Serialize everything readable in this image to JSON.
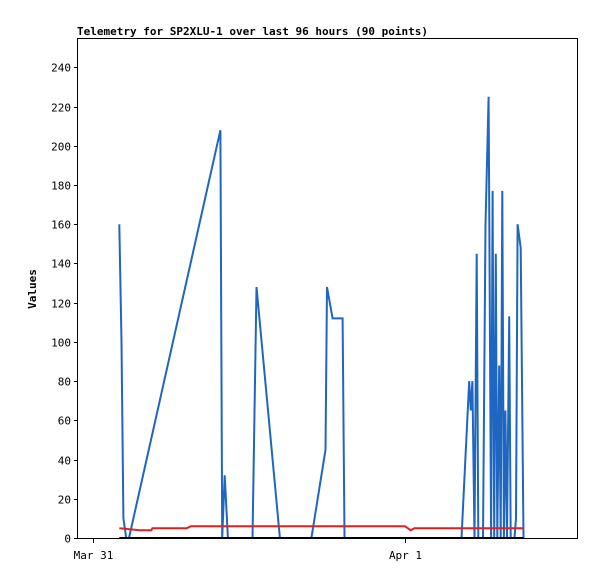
{
  "chart_data": {
    "type": "line",
    "title": "Telemetry for SP2XLU-1 over last 96 hours (90 points)",
    "ylabel": "Values",
    "xlabel": "",
    "ylim": [
      0,
      255
    ],
    "xlim": [
      -0.0485,
      1.5515
    ],
    "y_ticks": [
      0,
      20,
      40,
      60,
      80,
      100,
      120,
      140,
      160,
      180,
      200,
      220,
      240
    ],
    "x_ticks": [
      {
        "label": "Mar 31",
        "x": 0
      },
      {
        "label": "Apr 1",
        "x": 1
      }
    ],
    "grid": false,
    "legend": "none",
    "series": [
      {
        "color": "#1f66c0",
        "points": [
          [
            0.084,
            160
          ],
          [
            0.091,
            100
          ],
          [
            0.097,
            10
          ],
          [
            0.106,
            0
          ],
          [
            0.115,
            0
          ],
          [
            0.408,
            208
          ],
          [
            0.414,
            0
          ],
          [
            0.422,
            32
          ],
          [
            0.432,
            0
          ],
          [
            0.511,
            0
          ],
          [
            0.524,
            128
          ],
          [
            0.599,
            0
          ],
          [
            0.7,
            0
          ],
          [
            0.745,
            45
          ],
          [
            0.75,
            128
          ],
          [
            0.768,
            112
          ],
          [
            0.8,
            112
          ],
          [
            0.806,
            0
          ],
          [
            1.181,
            0
          ],
          [
            1.206,
            80
          ],
          [
            1.211,
            65
          ],
          [
            1.216,
            80
          ],
          [
            1.223,
            0
          ],
          [
            1.23,
            145
          ],
          [
            1.235,
            0
          ],
          [
            1.25,
            0
          ],
          [
            1.258,
            160
          ],
          [
            1.268,
            225
          ],
          [
            1.276,
            0
          ],
          [
            1.281,
            177
          ],
          [
            1.286,
            0
          ],
          [
            1.291,
            145
          ],
          [
            1.296,
            0
          ],
          [
            1.302,
            88
          ],
          [
            1.307,
            0
          ],
          [
            1.312,
            177
          ],
          [
            1.317,
            0
          ],
          [
            1.322,
            65
          ],
          [
            1.327,
            0
          ],
          [
            1.334,
            113
          ],
          [
            1.339,
            0
          ],
          [
            1.351,
            0
          ],
          [
            1.356,
            10
          ],
          [
            1.361,
            160
          ],
          [
            1.371,
            148
          ],
          [
            1.38,
            0
          ]
        ]
      },
      {
        "color": "#e02020",
        "points": [
          [
            0.084,
            5
          ],
          [
            0.15,
            4
          ],
          [
            0.187,
            4
          ],
          [
            0.19,
            5
          ],
          [
            0.3,
            5
          ],
          [
            0.314,
            6
          ],
          [
            1.0,
            6
          ],
          [
            1.018,
            4
          ],
          [
            1.03,
            5
          ],
          [
            1.38,
            5
          ]
        ]
      },
      {
        "color": "#000000",
        "points": [
          [
            0.084,
            0
          ],
          [
            1.38,
            0
          ]
        ]
      }
    ]
  }
}
